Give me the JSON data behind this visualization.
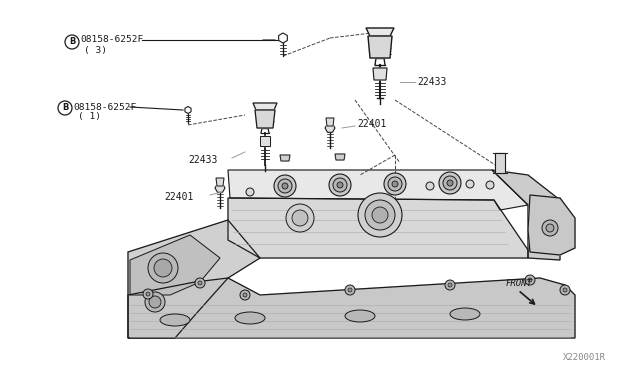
{
  "bg_color": "#ffffff",
  "lc": "#1a1a1a",
  "dc": "#444444",
  "gc": "#999999",
  "figsize": [
    6.4,
    3.72
  ],
  "dpi": 100,
  "watermark": "X220001R",
  "front_label": "FRONT",
  "bolt_label_top": "08158-6252F",
  "bolt_sub_top": "( 3)",
  "bolt_label_mid": "08158-6252F",
  "bolt_sub_mid": "( 1)",
  "label_22433": "22433",
  "label_22401": "22401"
}
